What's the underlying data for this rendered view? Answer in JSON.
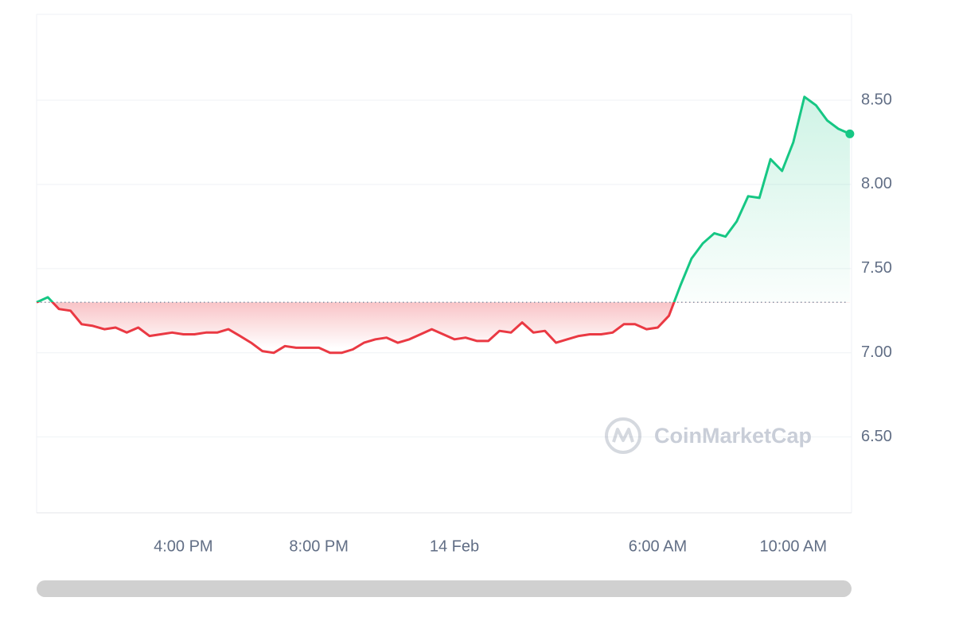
{
  "chart_data": {
    "type": "line",
    "x": [
      11.67,
      12,
      12.33,
      12.67,
      13,
      13.33,
      13.67,
      14,
      14.33,
      14.67,
      15,
      15.33,
      15.67,
      16,
      16.33,
      16.67,
      17,
      17.33,
      17.67,
      18,
      18.33,
      18.67,
      19,
      19.33,
      19.67,
      20,
      20.33,
      20.67,
      21,
      21.33,
      21.67,
      22,
      22.33,
      22.67,
      23,
      23.33,
      23.67,
      24,
      24.33,
      24.67,
      25,
      25.33,
      25.67,
      26,
      26.33,
      26.67,
      27,
      27.33,
      27.67,
      28,
      28.33,
      28.67,
      29,
      29.33,
      29.67,
      30,
      30.33,
      30.67,
      31,
      31.33,
      31.67,
      32,
      32.33,
      32.67,
      33,
      33.33,
      33.67,
      34,
      34.33,
      34.67,
      35,
      35.33,
      35.67
    ],
    "values": [
      7.3,
      7.33,
      7.26,
      7.25,
      7.17,
      7.16,
      7.14,
      7.15,
      7.12,
      7.15,
      7.1,
      7.11,
      7.12,
      7.11,
      7.11,
      7.12,
      7.12,
      7.14,
      7.1,
      7.06,
      7.01,
      7.0,
      7.04,
      7.03,
      7.03,
      7.03,
      7.0,
      7.0,
      7.02,
      7.06,
      7.08,
      7.09,
      7.06,
      7.08,
      7.11,
      7.14,
      7.11,
      7.08,
      7.09,
      7.07,
      7.07,
      7.13,
      7.12,
      7.18,
      7.12,
      7.13,
      7.06,
      7.08,
      7.1,
      7.11,
      7.11,
      7.12,
      7.17,
      7.17,
      7.14,
      7.15,
      7.22,
      7.4,
      7.56,
      7.65,
      7.71,
      7.69,
      7.78,
      7.93,
      7.92,
      8.15,
      8.08,
      8.25,
      8.52,
      8.47,
      8.38,
      8.33,
      8.3
    ],
    "baseline": 7.3,
    "color_up": "#16c784",
    "color_down": "#ea3943",
    "xlim": [
      11.67,
      35.72
    ],
    "xticks": [
      {
        "value": 16,
        "label": "4:00 PM"
      },
      {
        "value": 20,
        "label": "8:00 PM"
      },
      {
        "value": 24,
        "label": "14 Feb"
      },
      {
        "value": 30,
        "label": "6:00 AM"
      },
      {
        "value": 34,
        "label": "10:00 AM"
      }
    ],
    "ylim": [
      6.05,
      9.01
    ],
    "yticks": [
      {
        "value": 6.5,
        "label": "6.50"
      },
      {
        "value": 7,
        "label": "7.00"
      },
      {
        "value": 7.5,
        "label": "7.50"
      },
      {
        "value": 8,
        "label": "8.00"
      },
      {
        "value": 8.5,
        "label": "8.50"
      }
    ],
    "grid": true,
    "watermark": "CoinMarketCap"
  }
}
